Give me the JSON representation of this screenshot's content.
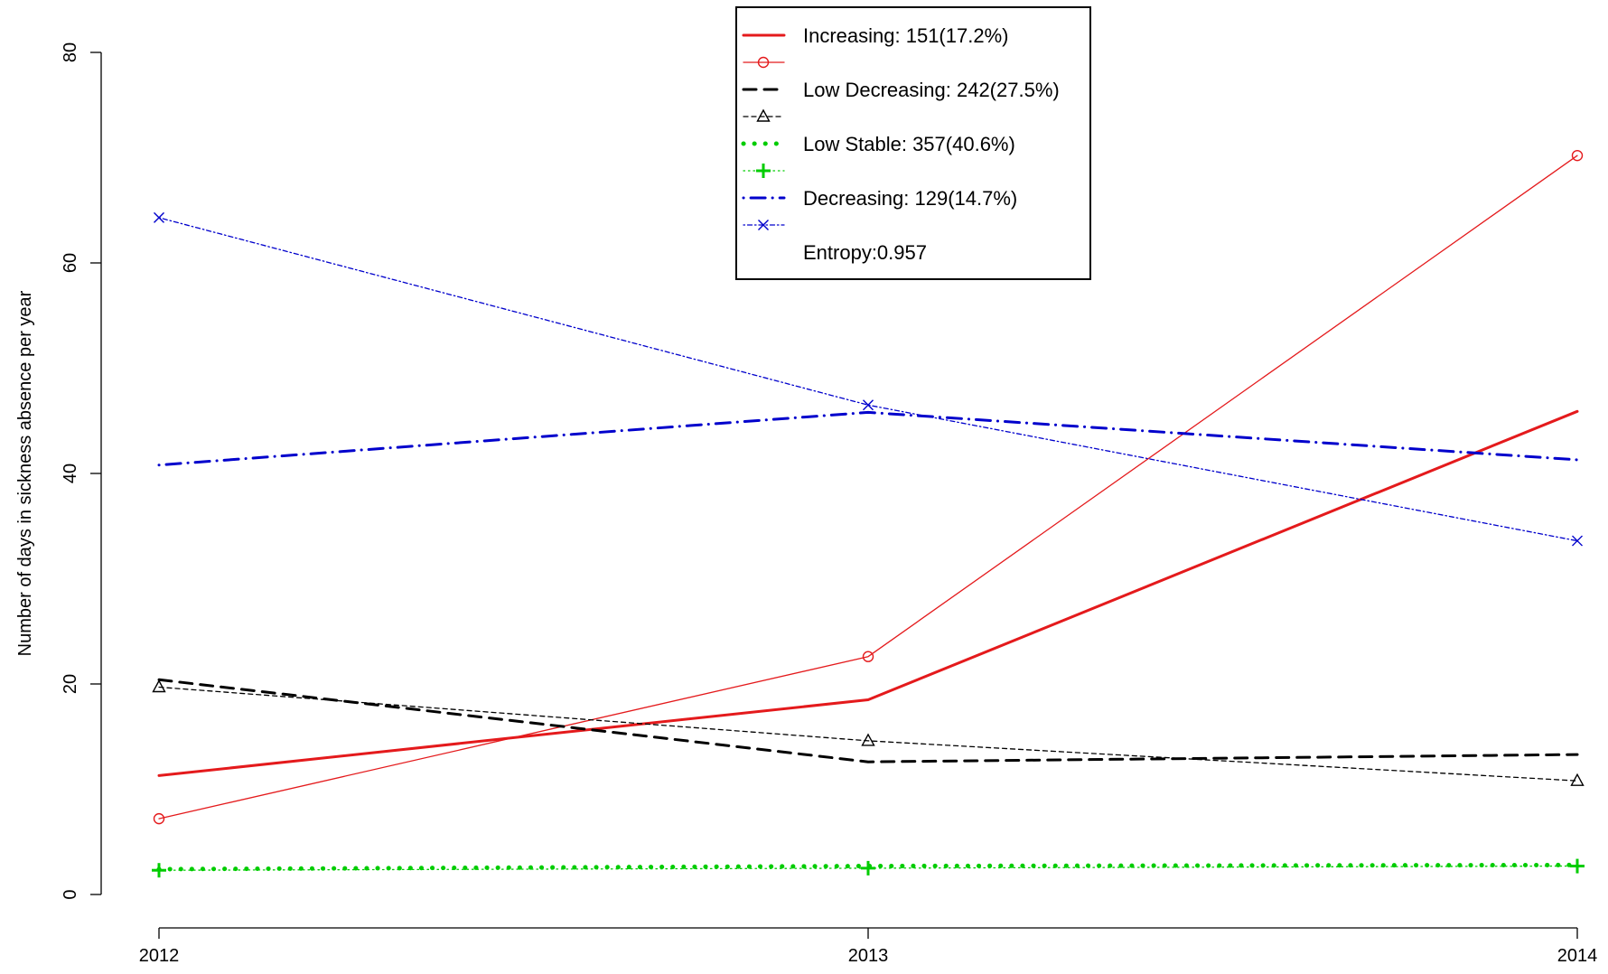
{
  "chart_data": {
    "type": "line",
    "title": "",
    "xlabel": "",
    "ylabel": "Number of days in sickness absence per year",
    "x": [
      2012,
      2013,
      2014
    ],
    "x_tick_labels": [
      "2012",
      "2013",
      "2014"
    ],
    "y_ticks": [
      0,
      20,
      40,
      60,
      80
    ],
    "y_tick_labels": [
      "0",
      "20",
      "40",
      "60",
      "80"
    ],
    "ylim": [
      0,
      80
    ],
    "grid": false,
    "legend_position": "top-center",
    "series": [
      {
        "name": "Increasing: 151(17.2%)",
        "color": "#e41a1c",
        "style": "solid",
        "kind": "model",
        "values": [
          11.3,
          18.5,
          45.9
        ]
      },
      {
        "name": "",
        "color": "#e41a1c",
        "style": "solid-thin",
        "kind": "observed",
        "marker": "circle",
        "values": [
          7.2,
          22.6,
          70.2
        ]
      },
      {
        "name": "Low Decreasing: 242(27.5%)",
        "color": "#000000",
        "style": "dashed",
        "kind": "model",
        "values": [
          20.4,
          12.6,
          13.3
        ]
      },
      {
        "name": "",
        "color": "#000000",
        "style": "dashed-thin",
        "kind": "observed",
        "marker": "triangle",
        "values": [
          19.7,
          14.6,
          10.8
        ]
      },
      {
        "name": "Low Stable: 357(40.6%)",
        "color": "#00cc00",
        "style": "dotted",
        "kind": "model",
        "values": [
          2.4,
          2.7,
          2.8
        ]
      },
      {
        "name": "",
        "color": "#00cc00",
        "style": "dotted-thin",
        "kind": "observed",
        "marker": "plus",
        "values": [
          2.3,
          2.5,
          2.7
        ]
      },
      {
        "name": "Decreasing: 129(14.7%)",
        "color": "#0000cc",
        "style": "dotdash",
        "kind": "model",
        "values": [
          40.8,
          45.8,
          41.3
        ]
      },
      {
        "name": "",
        "color": "#0000cc",
        "style": "dotdash-thin",
        "kind": "observed",
        "marker": "cross",
        "values": [
          64.3,
          46.5,
          33.6
        ]
      }
    ],
    "annotations": [
      "Entropy:0.957"
    ]
  }
}
